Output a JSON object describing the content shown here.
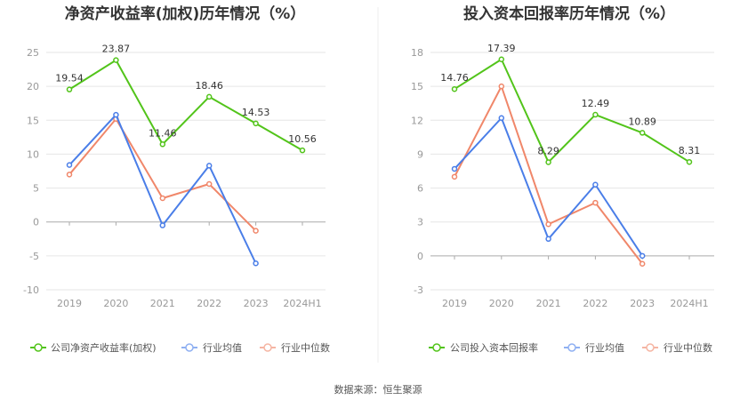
{
  "source": "数据来源：恒生聚源",
  "colors": {
    "company": "#52c41a",
    "avg": "#4a7ee8",
    "median": "#f0876a",
    "grid": "#e6e6e6",
    "axis": "#999999"
  },
  "legend": {
    "company_roe": "公司净资产收益率(加权)",
    "company_roic": "公司投入资本回报率",
    "avg": "行业均值",
    "median": "行业中位数"
  },
  "chart_data": [
    {
      "type": "line",
      "title": "净资产收益率(加权)历年情况（%）",
      "categories": [
        "2019",
        "2020",
        "2021",
        "2022",
        "2023",
        "2024H1"
      ],
      "ylim": [
        -10,
        25
      ],
      "yticks": [
        "-10",
        "-5",
        "0",
        "5",
        "10",
        "15",
        "20",
        "25"
      ],
      "series": [
        {
          "name": "公司净资产收益率(加权)",
          "key": "company",
          "values": [
            19.54,
            23.87,
            11.46,
            18.46,
            14.53,
            10.56
          ],
          "labels": [
            "19.54",
            "23.87",
            "11.46",
            "18.46",
            "14.53",
            "10.56"
          ]
        },
        {
          "name": "行业均值",
          "key": "avg",
          "values": [
            8.4,
            15.8,
            -0.5,
            8.3,
            -6.1,
            null
          ]
        },
        {
          "name": "行业中位数",
          "key": "median",
          "values": [
            7.0,
            15.2,
            3.5,
            5.6,
            -1.3,
            null
          ]
        }
      ]
    },
    {
      "type": "line",
      "title": "投入资本回报率历年情况（%）",
      "categories": [
        "2019",
        "2020",
        "2021",
        "2022",
        "2023",
        "2024H1"
      ],
      "ylim": [
        -3,
        18
      ],
      "yticks": [
        "-3",
        "0",
        "3",
        "6",
        "9",
        "12",
        "15",
        "18"
      ],
      "series": [
        {
          "name": "公司投入资本回报率",
          "key": "company",
          "values": [
            14.76,
            17.39,
            8.29,
            12.49,
            10.89,
            8.31
          ],
          "labels": [
            "14.76",
            "17.39",
            "8.29",
            "12.49",
            "10.89",
            "8.31"
          ]
        },
        {
          "name": "行业均值",
          "key": "avg",
          "values": [
            7.7,
            12.2,
            1.5,
            6.3,
            0.0,
            null
          ]
        },
        {
          "name": "行业中位数",
          "key": "median",
          "values": [
            7.0,
            15.0,
            2.8,
            4.7,
            -0.7,
            null
          ]
        }
      ]
    }
  ]
}
